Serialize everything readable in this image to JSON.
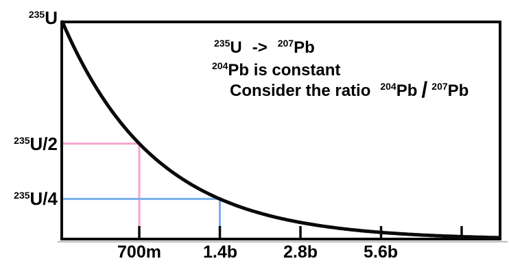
{
  "chart_data": {
    "type": "line",
    "subject": "Radioactive decay of Uranium-235 to Lead-207",
    "x_axis": {
      "tick_labels": [
        "700m",
        "1.4b",
        "2.8b",
        "5.6b"
      ],
      "unlabeled_extra_ticks": 1,
      "scale_note": "each successive tick doubles elapsed time (700 million, 1.4 billion, 2.8 billion, 5.6 billion years)"
    },
    "y_axis": {
      "labels": [
        {
          "sup": "235",
          "main": "U"
        },
        {
          "sup": "235",
          "main": "U/2"
        },
        {
          "sup": "235",
          "main": "U/4"
        }
      ]
    },
    "series": [
      {
        "name": "235U remaining",
        "x_half_lives": [
          0,
          1,
          2,
          3,
          4,
          5
        ],
        "fraction_remaining": [
          1,
          0.5,
          0.25,
          0.125,
          0.0625,
          0.03125
        ]
      }
    ],
    "half_life": "700m",
    "guides": [
      {
        "label": "235U/2 reached at 700m",
        "tick_index": 0,
        "color": "#f8a3cd"
      },
      {
        "label": "235U/4 reached at 1.4b",
        "tick_index": 1,
        "color": "#79aee9"
      }
    ],
    "colors": {
      "curve": "#0a0a0a",
      "axis": "#0a0a0a",
      "half_guide": "#f8a3cd",
      "quarter_guide": "#79aee9",
      "axis_shadow": "#bbbbbb"
    },
    "annotations": {
      "line1": {
        "sup1": "235",
        "t1": "U",
        "arrow": "->",
        "sup2": "207",
        "t2": "Pb"
      },
      "line2": {
        "sup1": "204",
        "t1": "Pb is constant"
      },
      "line3": {
        "t1": "Consider the ratio",
        "sup1": "204",
        "t2": "Pb",
        "slash": "/",
        "sup2": "207",
        "t3": "Pb"
      }
    }
  }
}
